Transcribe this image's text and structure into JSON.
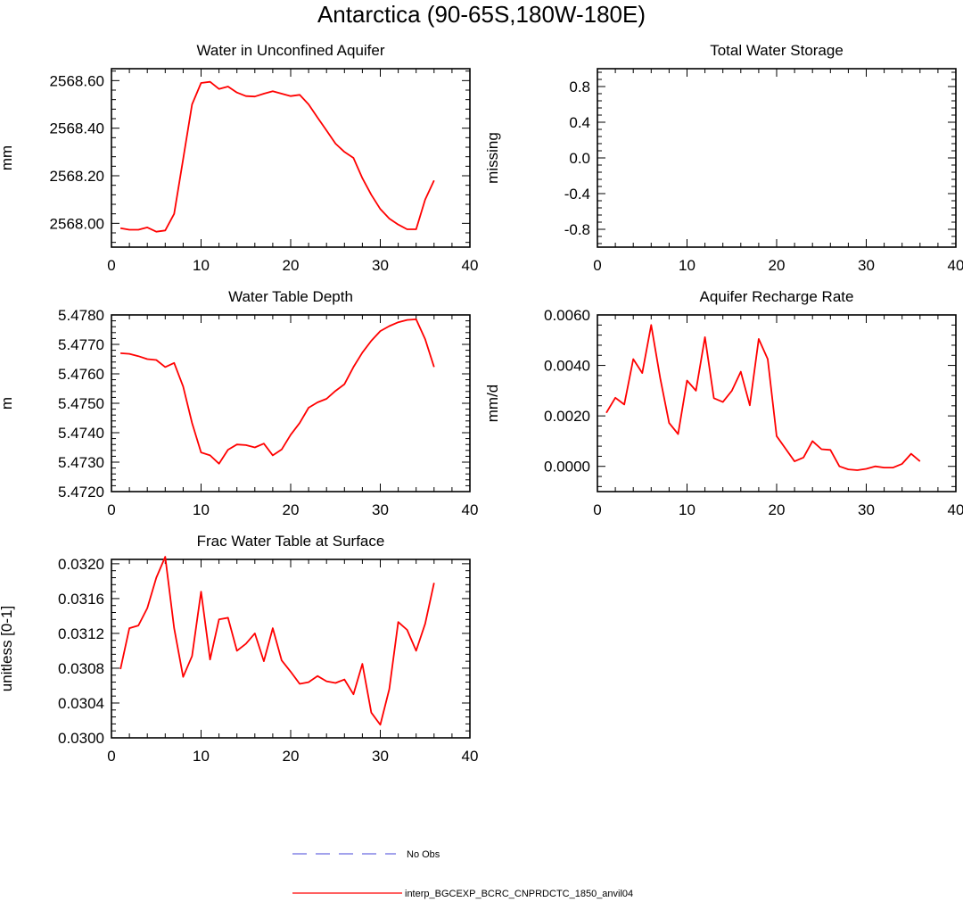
{
  "page_title": "Antarctica (90-65S,180W-180E)",
  "legend": {
    "obs_label": "No Obs",
    "model_label": "interp_BGCEXP_BCRC_CNPRDCTC_1850_anvil04",
    "obs_color": "#6a6ae0",
    "model_color": "#ff0000"
  },
  "chart_data": [
    {
      "id": "unconfined",
      "type": "line",
      "title": "Water in Unconfined Aquifer",
      "ylabel": "mm",
      "xlabel": "",
      "xlim": [
        0,
        40
      ],
      "ylim": [
        2567.9,
        2568.65
      ],
      "xticks": [
        0,
        10,
        20,
        30,
        40
      ],
      "yticks": [
        2568.0,
        2568.2,
        2568.4,
        2568.6
      ],
      "ytick_labels": [
        "2568.00",
        "2568.20",
        "2568.40",
        "2568.60"
      ],
      "grid": false,
      "series": [
        {
          "name": "interp_BGCEXP_BCRC_CNPRDCTC_1850_anvil04",
          "x": [
            1,
            2,
            3,
            4,
            5,
            6,
            7,
            8,
            9,
            10,
            11,
            12,
            13,
            14,
            15,
            16,
            17,
            18,
            19,
            20,
            21,
            22,
            23,
            24,
            25,
            26,
            27,
            28,
            29,
            30,
            31,
            32,
            33,
            34,
            35,
            36
          ],
          "y": [
            2567.98,
            2567.973,
            2567.973,
            2567.983,
            2567.965,
            2567.97,
            2568.04,
            2568.27,
            2568.5,
            2568.59,
            2568.595,
            2568.565,
            2568.575,
            2568.55,
            2568.535,
            2568.533,
            2568.545,
            2568.555,
            2568.545,
            2568.535,
            2568.54,
            2568.5,
            2568.445,
            2568.39,
            2568.335,
            2568.3,
            2568.275,
            2568.19,
            2568.12,
            2568.06,
            2568.02,
            2567.995,
            2567.975,
            2567.975,
            2568.1,
            2568.18
          ]
        }
      ]
    },
    {
      "id": "tws",
      "type": "line",
      "title": "Total Water Storage",
      "ylabel": "missing",
      "xlabel": "",
      "xlim": [
        0,
        40
      ],
      "ylim": [
        -1.0,
        1.0
      ],
      "xticks": [
        0,
        10,
        20,
        30,
        40
      ],
      "yticks": [
        -0.8,
        -0.4,
        0.0,
        0.4,
        0.8
      ],
      "ytick_labels": [
        "-0.8",
        "-0.4",
        "0.0",
        "0.4",
        "0.8"
      ],
      "grid": false,
      "series": []
    },
    {
      "id": "wtd",
      "type": "line",
      "title": "Water Table Depth",
      "ylabel": "m",
      "xlabel": "",
      "xlim": [
        0,
        40
      ],
      "ylim": [
        5.472,
        5.478
      ],
      "xticks": [
        0,
        10,
        20,
        30,
        40
      ],
      "yticks": [
        5.472,
        5.473,
        5.474,
        5.475,
        5.476,
        5.477,
        5.478
      ],
      "ytick_labels": [
        "5.4720",
        "5.4730",
        "5.4740",
        "5.4750",
        "5.4760",
        "5.4770",
        "5.4780"
      ],
      "grid": false,
      "series": [
        {
          "name": "interp_BGCEXP_BCRC_CNPRDCTC_1850_anvil04",
          "x": [
            1,
            2,
            3,
            4,
            5,
            6,
            7,
            8,
            9,
            10,
            11,
            12,
            13,
            14,
            15,
            16,
            17,
            18,
            19,
            20,
            21,
            22,
            23,
            24,
            25,
            26,
            27,
            28,
            29,
            30,
            31,
            32,
            33,
            34,
            35,
            36
          ],
          "y": [
            5.4767,
            5.47668,
            5.4766,
            5.4765,
            5.47647,
            5.47623,
            5.47637,
            5.47557,
            5.47433,
            5.47333,
            5.47323,
            5.47295,
            5.47342,
            5.4736,
            5.47358,
            5.4735,
            5.47363,
            5.47323,
            5.47343,
            5.47393,
            5.47433,
            5.47485,
            5.47503,
            5.47515,
            5.47542,
            5.47565,
            5.47623,
            5.47672,
            5.47712,
            5.47745,
            5.47762,
            5.47775,
            5.47783,
            5.47785,
            5.47718,
            5.47623
          ]
        }
      ]
    },
    {
      "id": "recharge",
      "type": "line",
      "title": "Aquifer Recharge Rate",
      "ylabel": "mm/d",
      "xlabel": "",
      "xlim": [
        0,
        40
      ],
      "ylim": [
        -0.001,
        0.006
      ],
      "xticks": [
        0,
        10,
        20,
        30,
        40
      ],
      "yticks": [
        0.0,
        0.002,
        0.004,
        0.006
      ],
      "ytick_labels": [
        "0.0000",
        "0.0020",
        "0.0040",
        "0.0060"
      ],
      "grid": false,
      "series": [
        {
          "name": "interp_BGCEXP_BCRC_CNPRDCTC_1850_anvil04",
          "x": [
            1,
            2,
            3,
            4,
            5,
            6,
            7,
            8,
            9,
            10,
            11,
            12,
            13,
            14,
            15,
            16,
            17,
            18,
            19,
            20,
            21,
            22,
            23,
            24,
            25,
            26,
            27,
            28,
            29,
            30,
            31,
            32,
            33,
            34,
            35,
            36
          ],
          "y": [
            0.00212,
            0.00272,
            0.00245,
            0.00425,
            0.0037,
            0.0056,
            0.0035,
            0.00172,
            0.00128,
            0.0034,
            0.003,
            0.00512,
            0.0027,
            0.00255,
            0.003,
            0.00375,
            0.00242,
            0.00505,
            0.00425,
            0.0012,
            0.0007,
            0.0002,
            0.00035,
            0.001,
            0.00068,
            0.00065,
            0.0,
            -0.00012,
            -0.00015,
            -0.0001,
            0.0,
            -5e-05,
            -5e-05,
            0.0001,
            0.0005,
            0.0002
          ]
        }
      ]
    },
    {
      "id": "fwts",
      "type": "line",
      "title": "Frac Water Table at Surface",
      "ylabel": "unitless [0-1]",
      "xlabel": "",
      "xlim": [
        0,
        40
      ],
      "ylim": [
        0.03,
        0.03205
      ],
      "xticks": [
        0,
        10,
        20,
        30,
        40
      ],
      "yticks": [
        0.03,
        0.0304,
        0.0308,
        0.0312,
        0.0316,
        0.032
      ],
      "ytick_labels": [
        "0.0300",
        "0.0304",
        "0.0308",
        "0.0312",
        "0.0316",
        "0.0320"
      ],
      "grid": false,
      "series": [
        {
          "name": "interp_BGCEXP_BCRC_CNPRDCTC_1850_anvil04",
          "x": [
            1,
            2,
            3,
            4,
            5,
            6,
            7,
            8,
            9,
            10,
            11,
            12,
            13,
            14,
            15,
            16,
            17,
            18,
            19,
            20,
            21,
            22,
            23,
            24,
            25,
            26,
            27,
            28,
            29,
            30,
            31,
            32,
            33,
            34,
            35,
            36
          ],
          "y": [
            0.03079,
            0.03126,
            0.03129,
            0.03149,
            0.03184,
            0.03208,
            0.03126,
            0.0307,
            0.03094,
            0.03168,
            0.0309,
            0.03136,
            0.03138,
            0.031,
            0.03108,
            0.0312,
            0.03088,
            0.03126,
            0.03089,
            0.03076,
            0.03062,
            0.03064,
            0.03071,
            0.03065,
            0.03063,
            0.03067,
            0.0305,
            0.03085,
            0.03029,
            0.03015,
            0.03056,
            0.03133,
            0.03124,
            0.031,
            0.03131,
            0.03178
          ]
        }
      ]
    }
  ]
}
